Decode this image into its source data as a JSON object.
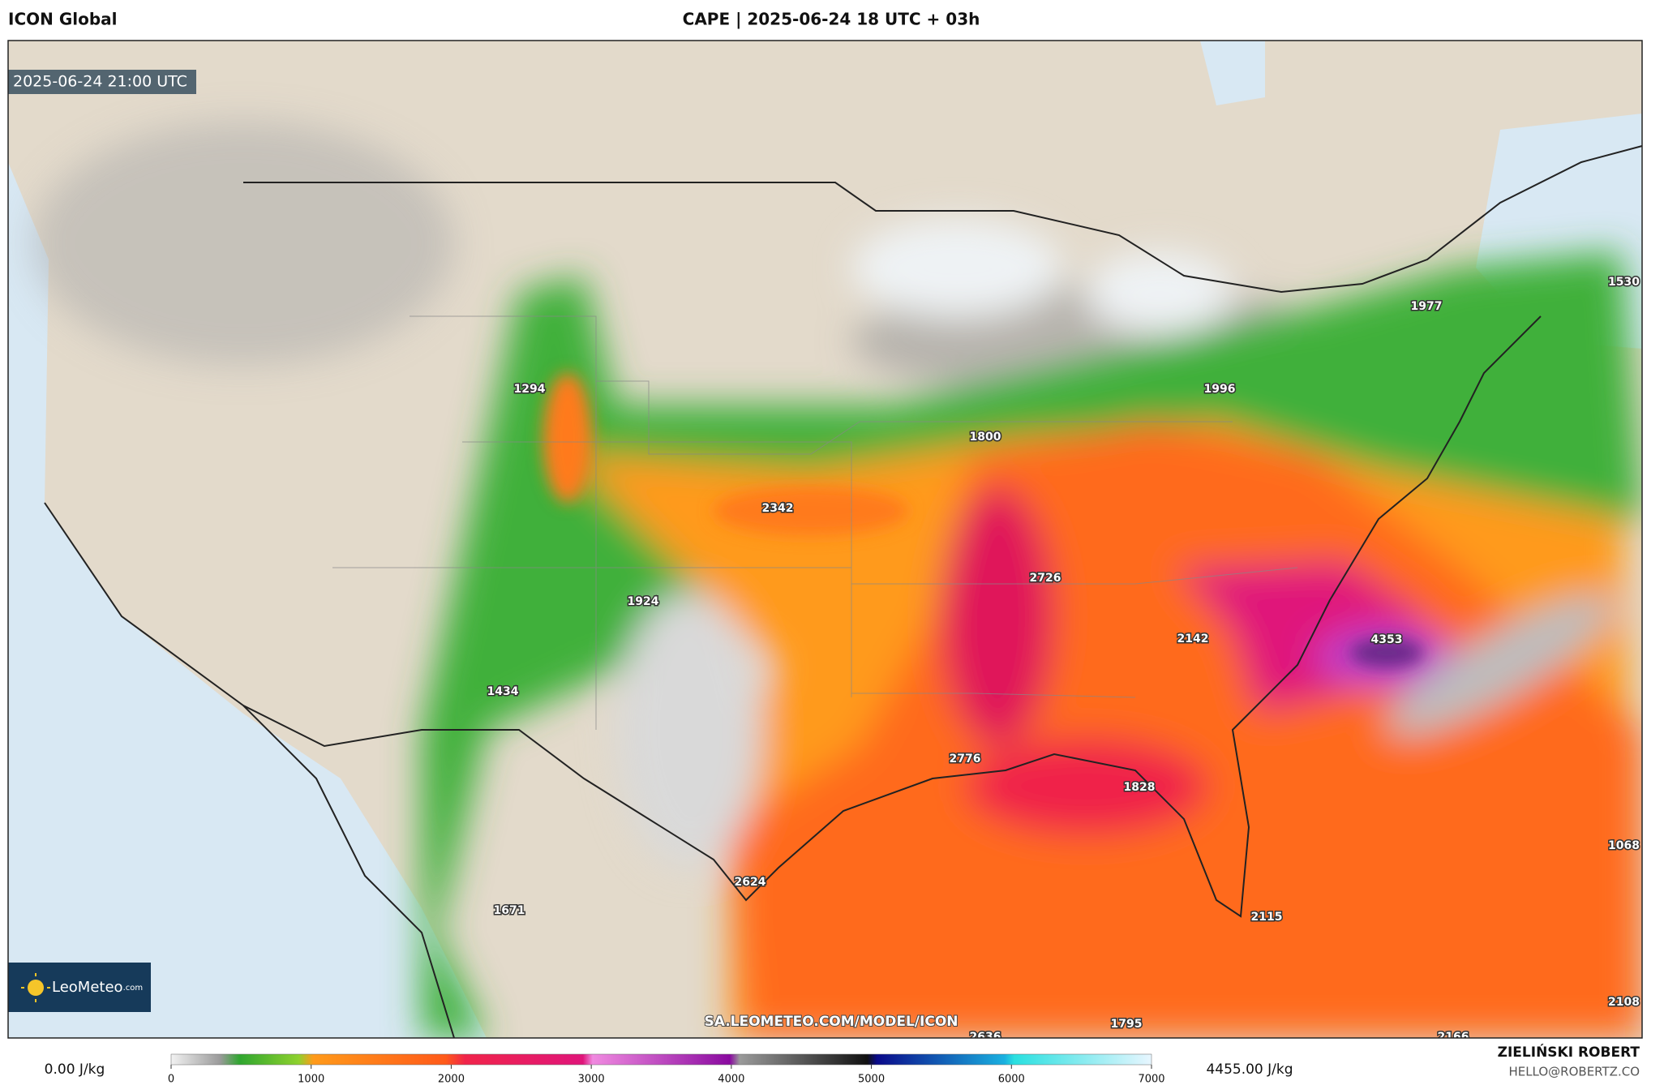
{
  "header": {
    "model": "ICON Global",
    "title": "CAPE | 2025-06-24 18 UTC + 03h"
  },
  "map": {
    "valid_time": "2025-06-24 21:00 UTC",
    "watermark": "SA.LEOMETEO.COM/MODEL/ICON",
    "logo": "LeoMeteo",
    "logo_suffix": ".com",
    "labels": [
      1294,
      1800,
      2342,
      1924,
      1434,
      1671,
      2624,
      2776,
      2726,
      2142,
      4353,
      1828,
      2115,
      1795,
      2636,
      2166,
      2108,
      1068,
      1530,
      1977,
      1996
    ]
  },
  "legend": {
    "min_label": "0.00 J/kg",
    "max_label": "4455.00 J/kg",
    "range": [
      0,
      7000
    ],
    "ticks": [
      0,
      1000,
      2000,
      3000,
      4000,
      5000,
      6000,
      7000
    ]
  },
  "footer": {
    "author": "ZIELIŃSKI ROBERT",
    "contact": "HELLO@ROBERTZ.CO"
  }
}
